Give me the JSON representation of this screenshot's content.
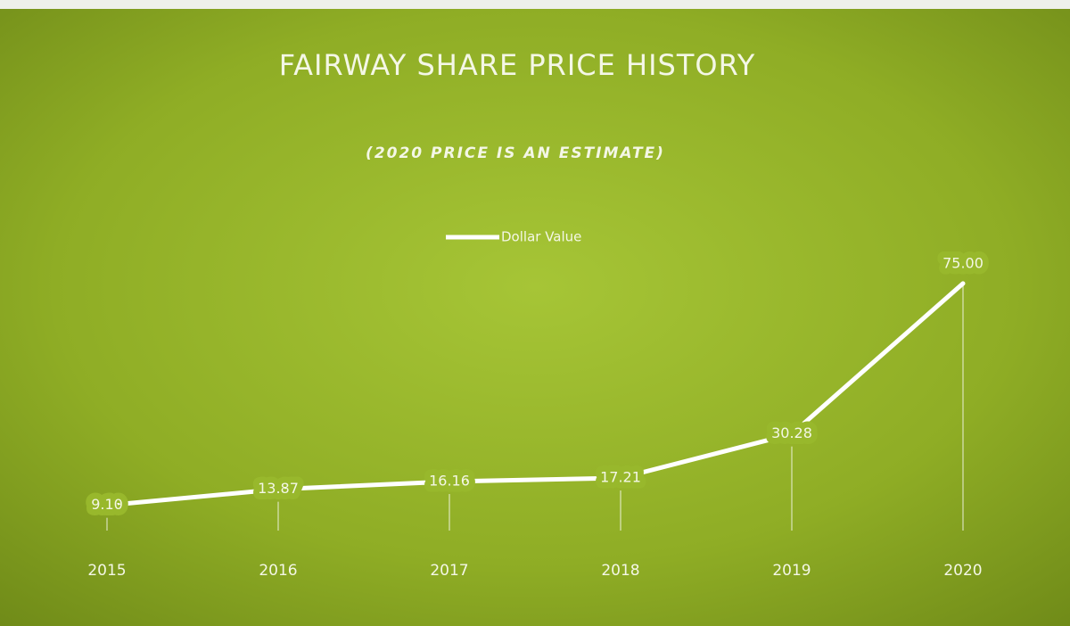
{
  "chart_data": {
    "type": "line",
    "title": "FAIRWAY SHARE PRICE HISTORY",
    "subtitle": "(2020 PRICE IS AN ESTIMATE)",
    "categories": [
      "2015",
      "2016",
      "2017",
      "2018",
      "2019",
      "2020"
    ],
    "series": [
      {
        "name": "Dollar Value",
        "color": "#ffffff",
        "values": [
          9.1,
          13.87,
          16.16,
          17.21,
          30.28,
          75
        ],
        "value_labels": [
          "9.10",
          "13.87",
          "16.16",
          "17.21",
          "30.28",
          "75.00"
        ]
      }
    ],
    "ylim": [
      0,
      80
    ],
    "legend": "top"
  }
}
